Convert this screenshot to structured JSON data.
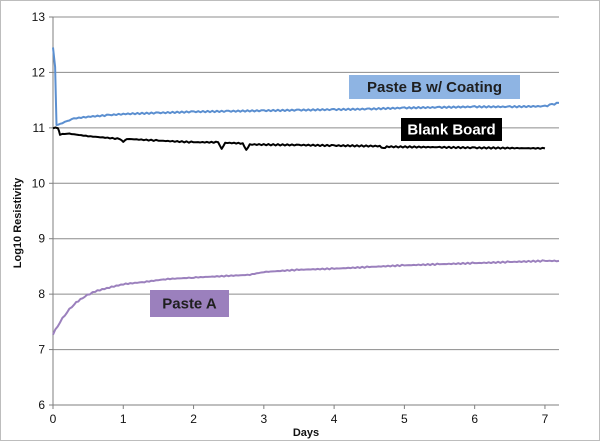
{
  "chart_data": {
    "type": "line",
    "xlabel": "Days",
    "ylabel": "Log10 Resistivity",
    "xlim": [
      0,
      7.2
    ],
    "ylim": [
      6,
      13
    ],
    "x_ticks": [
      "0",
      "1",
      "2",
      "3",
      "4",
      "5",
      "6",
      "7"
    ],
    "y_ticks": [
      "6",
      "7",
      "8",
      "9",
      "10",
      "11",
      "12",
      "13"
    ],
    "grid": "horizontal",
    "legend": "none",
    "series": [
      {
        "name": "Paste B w/ Coating",
        "color": "#5b8fd0",
        "label_bg": "#8eb4e3",
        "label_color": "#1f1f1f",
        "points": [
          [
            0.0,
            12.45
          ],
          [
            0.03,
            12.1
          ],
          [
            0.05,
            11.05
          ],
          [
            0.1,
            11.07
          ],
          [
            0.2,
            11.12
          ],
          [
            0.3,
            11.17
          ],
          [
            0.5,
            11.2
          ],
          [
            0.8,
            11.23
          ],
          [
            1.0,
            11.25
          ],
          [
            1.5,
            11.27
          ],
          [
            2.0,
            11.29
          ],
          [
            2.5,
            11.3
          ],
          [
            3.0,
            11.31
          ],
          [
            3.5,
            11.32
          ],
          [
            4.0,
            11.33
          ],
          [
            4.5,
            11.34
          ],
          [
            5.0,
            11.36
          ],
          [
            5.5,
            11.37
          ],
          [
            6.0,
            11.38
          ],
          [
            6.5,
            11.38
          ],
          [
            7.0,
            11.39
          ],
          [
            7.1,
            11.42
          ],
          [
            7.2,
            11.45
          ]
        ]
      },
      {
        "name": "Blank Board",
        "color": "#000000",
        "label_bg": "#000000",
        "label_color": "#ffffff",
        "points": [
          [
            0.0,
            11.0
          ],
          [
            0.07,
            11.0
          ],
          [
            0.1,
            10.88
          ],
          [
            0.2,
            10.9
          ],
          [
            0.5,
            10.85
          ],
          [
            0.95,
            10.8
          ],
          [
            1.0,
            10.75
          ],
          [
            1.05,
            10.8
          ],
          [
            1.5,
            10.77
          ],
          [
            2.0,
            10.74
          ],
          [
            2.35,
            10.74
          ],
          [
            2.4,
            10.62
          ],
          [
            2.45,
            10.73
          ],
          [
            2.7,
            10.72
          ],
          [
            2.75,
            10.6
          ],
          [
            2.8,
            10.7
          ],
          [
            3.5,
            10.69
          ],
          [
            4.0,
            10.68
          ],
          [
            4.65,
            10.67
          ],
          [
            4.7,
            10.63
          ],
          [
            4.75,
            10.66
          ],
          [
            5.5,
            10.65
          ],
          [
            6.0,
            10.64
          ],
          [
            7.0,
            10.63
          ]
        ]
      },
      {
        "name": "Paste A",
        "color": "#9b80bd",
        "label_bg": "#9b80bd",
        "label_color": "#1f1f1f",
        "points": [
          [
            0.0,
            7.28
          ],
          [
            0.1,
            7.5
          ],
          [
            0.2,
            7.68
          ],
          [
            0.3,
            7.82
          ],
          [
            0.45,
            7.96
          ],
          [
            0.6,
            8.05
          ],
          [
            0.8,
            8.12
          ],
          [
            1.0,
            8.18
          ],
          [
            1.3,
            8.22
          ],
          [
            1.6,
            8.27
          ],
          [
            2.0,
            8.3
          ],
          [
            2.5,
            8.33
          ],
          [
            2.8,
            8.35
          ],
          [
            3.0,
            8.4
          ],
          [
            3.5,
            8.44
          ],
          [
            4.0,
            8.46
          ],
          [
            4.5,
            8.49
          ],
          [
            5.0,
            8.52
          ],
          [
            5.5,
            8.54
          ],
          [
            6.0,
            8.56
          ],
          [
            6.5,
            8.58
          ],
          [
            7.0,
            8.6
          ],
          [
            7.2,
            8.6
          ]
        ]
      }
    ]
  }
}
